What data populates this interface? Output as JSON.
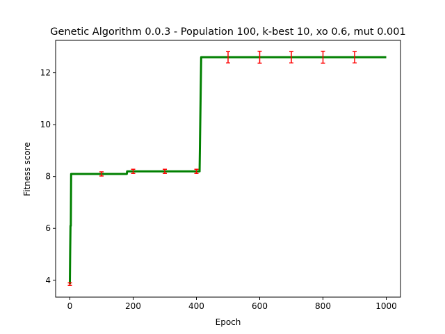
{
  "chart_data": {
    "type": "line",
    "title": "Genetic Algorithm 0.0.3 - Population 100, k-best 10, xo 0.6, mut 0.001",
    "xlabel": "Epoch",
    "ylabel": "Fitness score",
    "xlim": [
      -45,
      1045
    ],
    "ylim": [
      3.35,
      13.25
    ],
    "xticks": [
      0,
      200,
      400,
      600,
      800,
      1000
    ],
    "yticks": [
      4,
      6,
      8,
      10,
      12
    ],
    "grid": false,
    "series": [
      {
        "color": "#008000",
        "x": [
          0,
          1,
          2,
          3,
          4,
          5,
          180,
          181,
          410,
          415,
          1000
        ],
        "y": [
          3.85,
          5.1,
          6.1,
          6.1,
          8.1,
          8.1,
          8.1,
          8.2,
          8.2,
          12.6,
          12.6
        ]
      }
    ],
    "error_bars": {
      "color": "#ff0000",
      "x": [
        0,
        100,
        200,
        300,
        400,
        500,
        600,
        700,
        800,
        900
      ],
      "y": [
        3.85,
        8.1,
        8.2,
        8.2,
        8.2,
        12.6,
        12.6,
        12.6,
        12.6,
        12.6
      ],
      "err": [
        0.05,
        0.08,
        0.08,
        0.08,
        0.08,
        0.22,
        0.23,
        0.22,
        0.23,
        0.22
      ]
    }
  }
}
